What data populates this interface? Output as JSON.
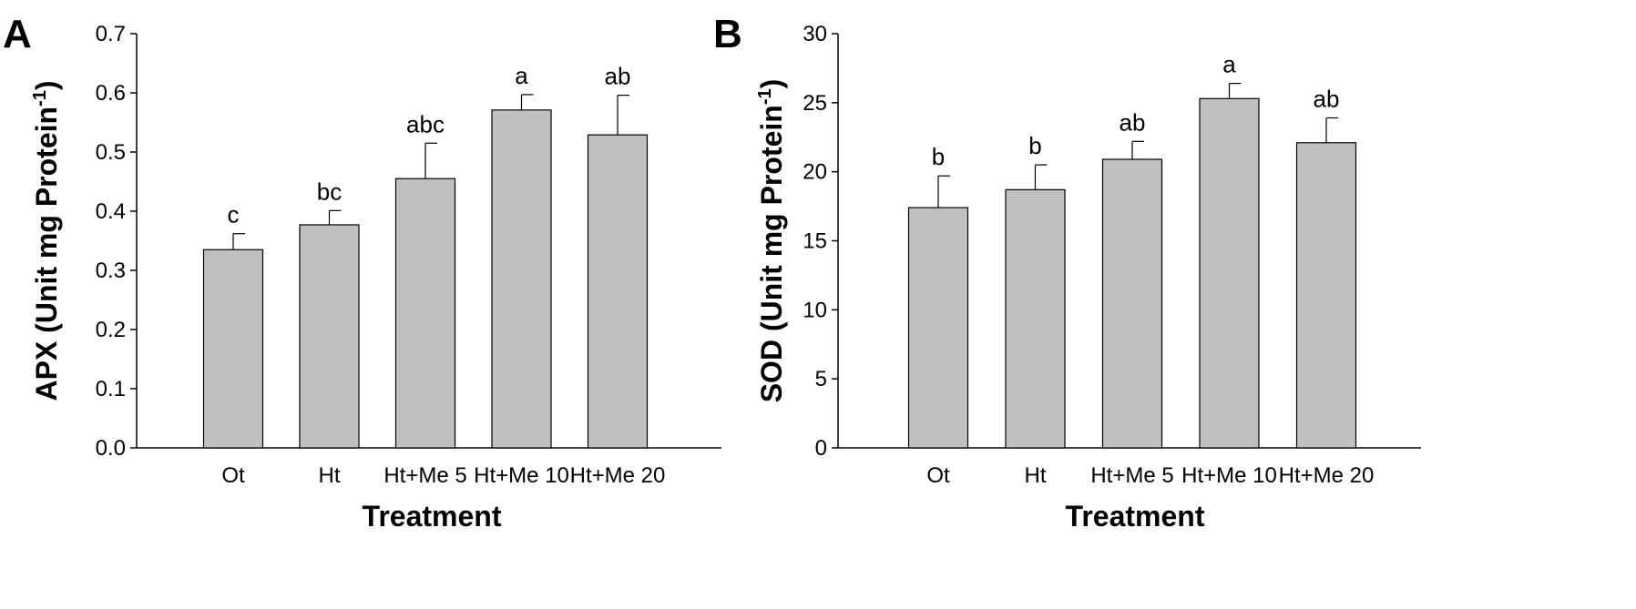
{
  "chart_data": [
    {
      "type": "bar",
      "panel_label": "A",
      "categories": [
        "Ot",
        "Ht",
        "Ht+Me 5",
        "Ht+Me 10",
        "Ht+Me 20"
      ],
      "values": [
        0.335,
        0.377,
        0.455,
        0.571,
        0.529
      ],
      "errors": [
        0.027,
        0.024,
        0.06,
        0.026,
        0.067
      ],
      "significance": [
        "c",
        "bc",
        "abc",
        "a",
        "ab"
      ],
      "xlabel": "Treatment",
      "ylabel_main": "APX (Unit mg Protein",
      "ylabel_sup": "-1",
      "ylabel_close": ")",
      "ylim": [
        0,
        0.7
      ],
      "yticks": [
        "0.0",
        "0.1",
        "0.2",
        "0.3",
        "0.4",
        "0.5",
        "0.6",
        "0.7"
      ],
      "ytick_values": [
        0,
        0.1,
        0.2,
        0.3,
        0.4,
        0.5,
        0.6,
        0.7
      ],
      "bar_color": "#c0c0c0",
      "grid": false
    },
    {
      "type": "bar",
      "panel_label": "B",
      "categories": [
        "Ot",
        "Ht",
        "Ht+Me 5",
        "Ht+Me 10",
        "Ht+Me 20"
      ],
      "values": [
        17.4,
        18.7,
        20.9,
        25.3,
        22.1
      ],
      "errors": [
        2.3,
        1.8,
        1.3,
        1.1,
        1.8
      ],
      "significance": [
        "b",
        "b",
        "ab",
        "a",
        "ab"
      ],
      "xlabel": "Treatment",
      "ylabel_main": "SOD (Unit mg Protein",
      "ylabel_sup": "-1",
      "ylabel_close": ")",
      "ylim": [
        0,
        30
      ],
      "yticks": [
        "0",
        "5",
        "10",
        "15",
        "20",
        "25",
        "30"
      ],
      "ytick_values": [
        0,
        5,
        10,
        15,
        20,
        25,
        30
      ],
      "bar_color": "#c0c0c0",
      "grid": false
    }
  ]
}
